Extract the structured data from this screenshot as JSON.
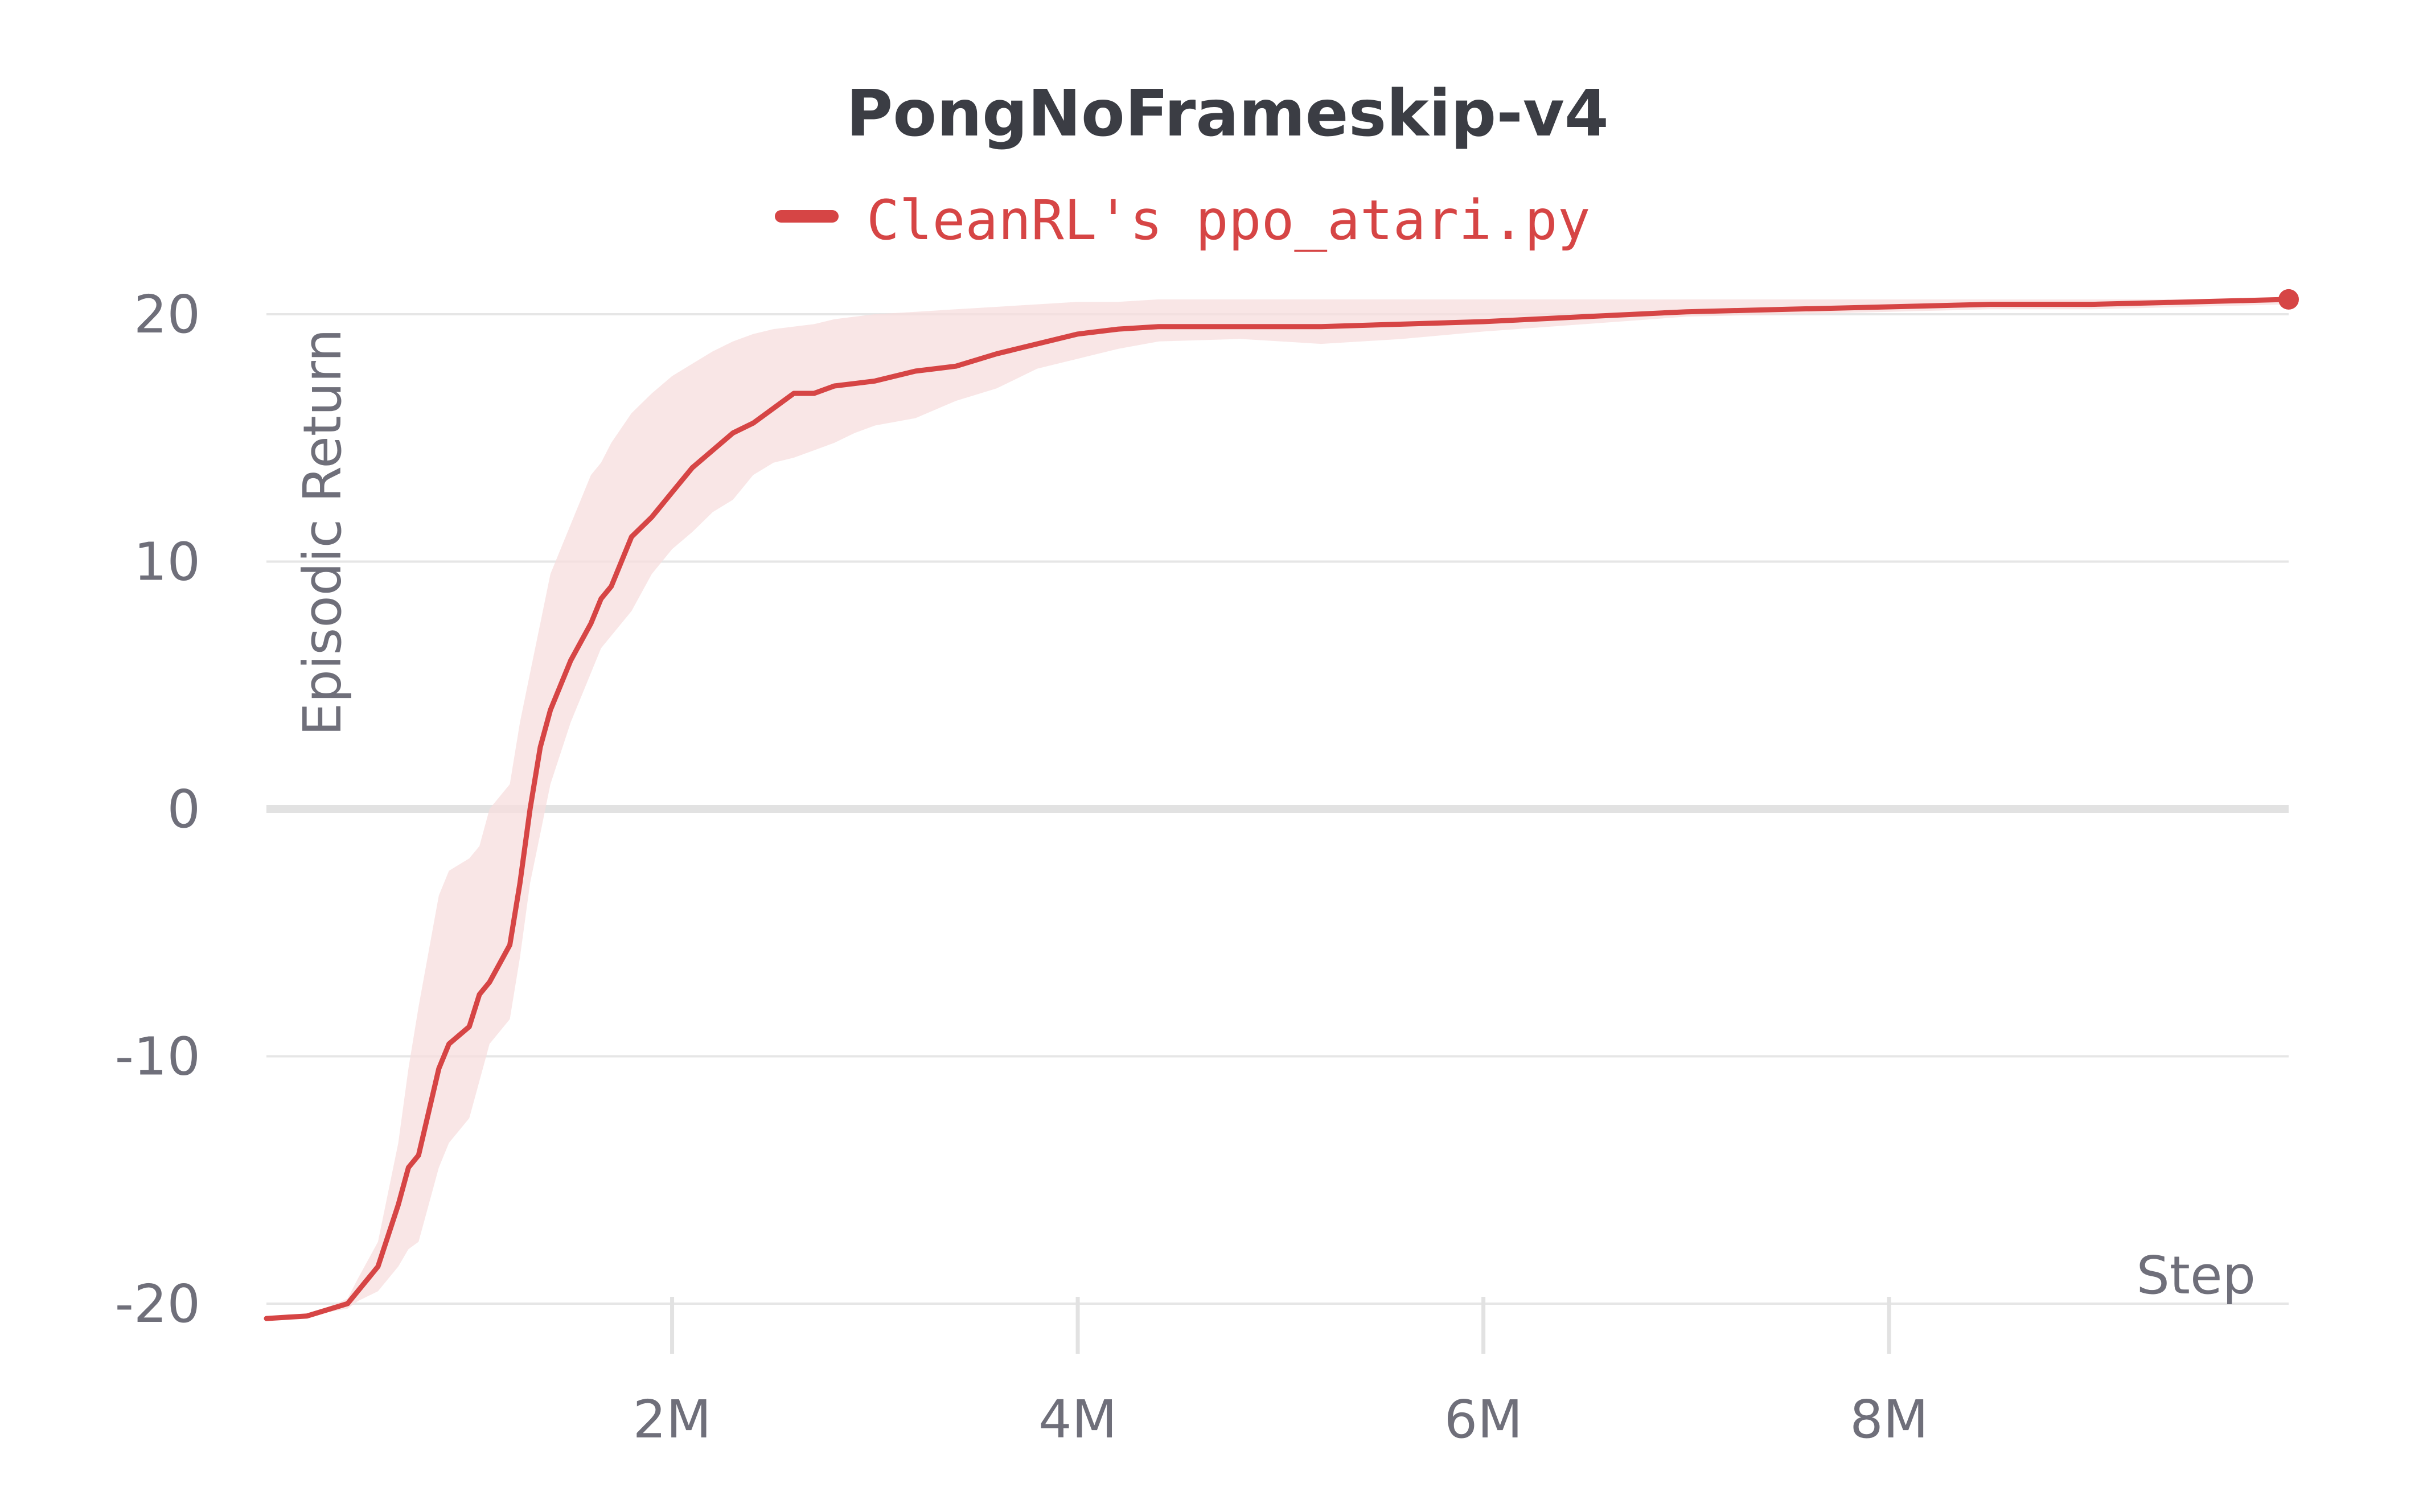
{
  "chart_data": {
    "type": "line",
    "title": "PongNoFrameskip-v4",
    "xlabel": "Step",
    "ylabel": "Episodic Return",
    "xlim": [
      0,
      9970000
    ],
    "ylim": [
      -20.8,
      22.5
    ],
    "x_ticks": [
      {
        "value": 2000000,
        "label": "2M"
      },
      {
        "value": 4000000,
        "label": "4M"
      },
      {
        "value": 6000000,
        "label": "6M"
      },
      {
        "value": 8000000,
        "label": "8M"
      }
    ],
    "y_ticks": [
      {
        "value": 20,
        "label": "20"
      },
      {
        "value": 10,
        "label": "10"
      },
      {
        "value": 0,
        "label": "0"
      },
      {
        "value": -10,
        "label": "-10"
      },
      {
        "value": -20,
        "label": "-20"
      }
    ],
    "grid": true,
    "legend": {
      "position": "top-center"
    },
    "series": [
      {
        "name": "CleanRL's ppo_atari.py",
        "color": "#d64545",
        "band_color": "#f7dede",
        "x": [
          0,
          200000,
          400000,
          450000,
          550000,
          650000,
          700000,
          750000,
          850000,
          900000,
          1000000,
          1050000,
          1100000,
          1200000,
          1250000,
          1300000,
          1350000,
          1400000,
          1500000,
          1600000,
          1650000,
          1700000,
          1800000,
          1900000,
          2000000,
          2100000,
          2200000,
          2300000,
          2400000,
          2500000,
          2600000,
          2700000,
          2800000,
          2900000,
          3000000,
          3200000,
          3400000,
          3600000,
          3800000,
          4000000,
          4200000,
          4400000,
          4800000,
          5200000,
          5600000,
          6000000,
          6500000,
          7000000,
          7500000,
          8000000,
          8500000,
          9000000,
          9500000,
          9970000
        ],
        "values": [
          -20.6,
          -20.5,
          -20.0,
          -19.5,
          -18.5,
          -16.0,
          -14.5,
          -14.0,
          -10.5,
          -9.5,
          -8.8,
          -7.5,
          -7.0,
          -5.5,
          -3.0,
          0.0,
          2.5,
          4.0,
          6.0,
          7.5,
          8.5,
          9.0,
          11.0,
          11.8,
          12.8,
          13.8,
          14.5,
          15.2,
          15.6,
          16.2,
          16.8,
          16.8,
          17.1,
          17.2,
          17.3,
          17.7,
          17.9,
          18.4,
          18.8,
          19.2,
          19.4,
          19.5,
          19.5,
          19.5,
          19.6,
          19.7,
          19.9,
          20.1,
          20.2,
          20.3,
          20.4,
          20.4,
          20.5,
          20.6
        ],
        "lower": [
          -20.6,
          -20.5,
          -20.2,
          -19.9,
          -19.5,
          -18.5,
          -17.8,
          -17.5,
          -14.5,
          -13.5,
          -12.5,
          -11.0,
          -9.5,
          -8.5,
          -6.0,
          -3.0,
          -1.0,
          1.0,
          3.5,
          5.5,
          6.5,
          7.0,
          8.0,
          9.5,
          10.5,
          11.2,
          12.0,
          12.5,
          13.5,
          14.0,
          14.2,
          14.5,
          14.8,
          15.2,
          15.5,
          15.8,
          16.5,
          17.0,
          17.8,
          18.2,
          18.6,
          18.9,
          19.0,
          18.8,
          19.0,
          19.3,
          19.6,
          19.9,
          20.0,
          20.1,
          20.2,
          20.2,
          20.3,
          20.4
        ],
        "upper": [
          -20.6,
          -20.5,
          -19.8,
          -19.0,
          -17.5,
          -13.5,
          -10.5,
          -8.0,
          -3.5,
          -2.5,
          -2.0,
          -1.5,
          0.0,
          1.0,
          3.5,
          5.5,
          7.5,
          9.5,
          11.5,
          13.5,
          14.0,
          14.8,
          16.0,
          16.8,
          17.5,
          18.0,
          18.5,
          18.9,
          19.2,
          19.4,
          19.5,
          19.6,
          19.8,
          19.9,
          20.0,
          20.1,
          20.2,
          20.3,
          20.4,
          20.5,
          20.5,
          20.6,
          20.6,
          20.6,
          20.6,
          20.6,
          20.6,
          20.6,
          20.6,
          20.6,
          20.6,
          20.6,
          20.6,
          20.7
        ]
      }
    ]
  }
}
